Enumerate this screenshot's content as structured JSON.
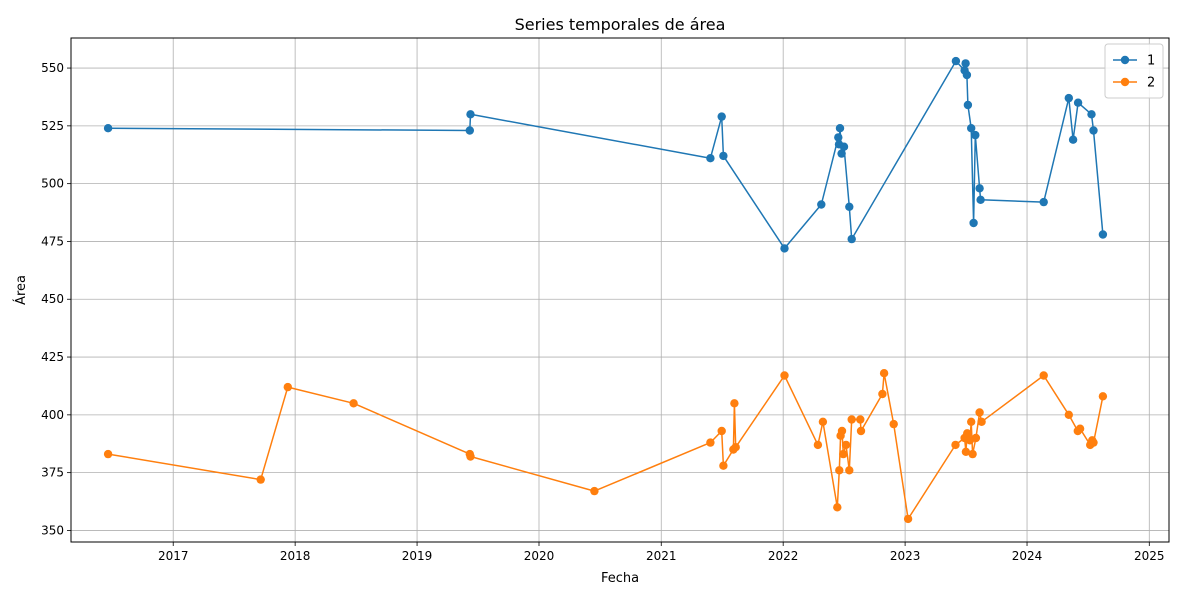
{
  "chart_data": {
    "type": "line",
    "title": "Series temporales de área",
    "xlabel": "Fecha",
    "ylabel": "Área",
    "xlim": [
      "2016-03-01",
      "2025-03-01"
    ],
    "ylim": [
      345,
      563
    ],
    "x_ticks": [
      "2017",
      "2018",
      "2019",
      "2020",
      "2021",
      "2022",
      "2023",
      "2024",
      "2025"
    ],
    "y_ticks": [
      350,
      375,
      400,
      425,
      450,
      475,
      500,
      525,
      550
    ],
    "grid": true,
    "legend_position": "top-right",
    "marker": "circle",
    "series": [
      {
        "name": "1",
        "color": "#1f77b4",
        "points": [
          [
            "2016-06-20",
            524
          ],
          [
            "2019-06-08",
            523
          ],
          [
            "2019-06-10",
            530
          ],
          [
            "2021-05-28",
            511
          ],
          [
            "2021-07-01",
            529
          ],
          [
            "2021-07-06",
            512
          ],
          [
            "2022-01-05",
            472
          ],
          [
            "2022-04-25",
            491
          ],
          [
            "2022-06-15",
            520
          ],
          [
            "2022-06-17",
            517
          ],
          [
            "2022-06-20",
            524
          ],
          [
            "2022-06-25",
            513
          ],
          [
            "2022-07-02",
            516
          ],
          [
            "2022-07-18",
            490
          ],
          [
            "2022-07-25",
            476
          ],
          [
            "2023-06-02",
            553
          ],
          [
            "2023-06-28",
            549
          ],
          [
            "2023-07-01",
            552
          ],
          [
            "2023-07-05",
            547
          ],
          [
            "2023-07-08",
            534
          ],
          [
            "2023-07-18",
            524
          ],
          [
            "2023-07-25",
            483
          ],
          [
            "2023-07-30",
            521
          ],
          [
            "2023-08-12",
            498
          ],
          [
            "2023-08-15",
            493
          ],
          [
            "2024-02-20",
            492
          ],
          [
            "2024-05-05",
            537
          ],
          [
            "2024-05-18",
            519
          ],
          [
            "2024-06-02",
            535
          ],
          [
            "2024-07-12",
            530
          ],
          [
            "2024-07-18",
            523
          ],
          [
            "2024-08-15",
            478
          ]
        ]
      },
      {
        "name": "2",
        "color": "#ff7f0e",
        "points": [
          [
            "2016-06-20",
            383
          ],
          [
            "2017-09-20",
            372
          ],
          [
            "2017-12-10",
            412
          ],
          [
            "2018-06-25",
            405
          ],
          [
            "2019-06-08",
            383
          ],
          [
            "2019-06-10",
            382
          ],
          [
            "2020-06-15",
            367
          ],
          [
            "2021-05-28",
            388
          ],
          [
            "2021-07-01",
            393
          ],
          [
            "2021-07-06",
            378
          ],
          [
            "2021-08-05",
            385
          ],
          [
            "2021-08-08",
            405
          ],
          [
            "2021-08-12",
            386
          ],
          [
            "2022-01-05",
            417
          ],
          [
            "2022-04-15",
            387
          ],
          [
            "2022-04-30",
            397
          ],
          [
            "2022-06-12",
            360
          ],
          [
            "2022-06-18",
            376
          ],
          [
            "2022-06-22",
            391
          ],
          [
            "2022-06-26",
            393
          ],
          [
            "2022-06-30",
            383
          ],
          [
            "2022-07-08",
            387
          ],
          [
            "2022-07-18",
            376
          ],
          [
            "2022-07-25",
            398
          ],
          [
            "2022-08-20",
            398
          ],
          [
            "2022-08-22",
            393
          ],
          [
            "2022-10-25",
            409
          ],
          [
            "2022-10-30",
            418
          ],
          [
            "2022-11-28",
            396
          ],
          [
            "2023-01-10",
            355
          ],
          [
            "2023-06-01",
            387
          ],
          [
            "2023-06-28",
            390
          ],
          [
            "2023-07-02",
            384
          ],
          [
            "2023-07-06",
            392
          ],
          [
            "2023-07-14",
            389
          ],
          [
            "2023-07-18",
            397
          ],
          [
            "2023-07-22",
            383
          ],
          [
            "2023-08-01",
            390
          ],
          [
            "2023-08-12",
            401
          ],
          [
            "2023-08-18",
            397
          ],
          [
            "2024-02-20",
            417
          ],
          [
            "2024-05-05",
            400
          ],
          [
            "2024-06-01",
            393
          ],
          [
            "2024-06-08",
            394
          ],
          [
            "2024-07-08",
            387
          ],
          [
            "2024-07-14",
            389
          ],
          [
            "2024-07-18",
            388
          ],
          [
            "2024-08-15",
            408
          ]
        ]
      }
    ]
  }
}
